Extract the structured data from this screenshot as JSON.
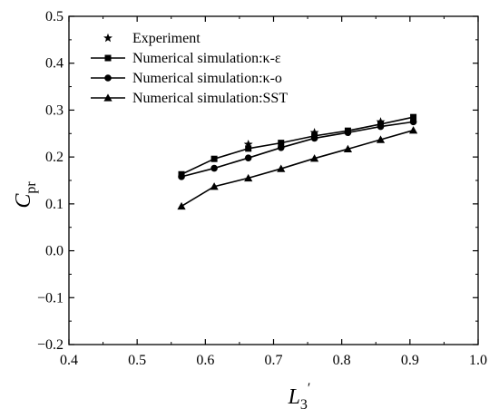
{
  "chart_data": {
    "type": "line",
    "xlabel": "L",
    "xlabel_sub": "3",
    "xlabel_sup": "′",
    "ylabel": "C",
    "ylabel_sub": "pr",
    "xlim": [
      0.4,
      1.0
    ],
    "ylim": [
      -0.2,
      0.5
    ],
    "xticks": [
      0.4,
      0.5,
      0.6,
      0.7,
      0.8,
      0.9,
      1.0
    ],
    "xtick_labels": [
      "0.4",
      "0.5",
      "0.6",
      "0.7",
      "0.8",
      "0.9",
      "1.0"
    ],
    "yticks": [
      -0.2,
      -0.1,
      0.0,
      0.1,
      0.2,
      0.3,
      0.4,
      0.5
    ],
    "ytick_labels": [
      "−0.2",
      "−0.1",
      "0.0",
      "0.1",
      "0.2",
      "0.3",
      "0.4",
      "0.5"
    ],
    "grid": false,
    "legend_position": "top-left",
    "series": [
      {
        "name": "Experiment",
        "marker": "star",
        "line": false,
        "color": "#000000",
        "x": [
          0.663,
          0.76,
          0.857
        ],
        "y": [
          0.227,
          0.252,
          0.275
        ]
      },
      {
        "name": "Numerical simulation:κ-ε",
        "marker": "square",
        "line": true,
        "color": "#000000",
        "x": [
          0.565,
          0.613,
          0.663,
          0.711,
          0.76,
          0.809,
          0.857,
          0.905
        ],
        "y": [
          0.163,
          0.196,
          0.218,
          0.23,
          0.245,
          0.256,
          0.27,
          0.285
        ]
      },
      {
        "name": "Numerical simulation:κ-ο",
        "marker": "circle",
        "line": true,
        "color": "#000000",
        "x": [
          0.565,
          0.613,
          0.663,
          0.711,
          0.76,
          0.809,
          0.857,
          0.905
        ],
        "y": [
          0.158,
          0.176,
          0.198,
          0.22,
          0.24,
          0.252,
          0.265,
          0.275
        ]
      },
      {
        "name": "Numerical simulation:SST",
        "marker": "triangle",
        "line": true,
        "color": "#000000",
        "x": [
          0.565,
          0.613,
          0.663,
          0.711,
          0.76,
          0.809,
          0.857,
          0.905
        ],
        "y": [
          0.095,
          0.137,
          0.155,
          0.175,
          0.197,
          0.217,
          0.237,
          0.257
        ]
      }
    ]
  }
}
